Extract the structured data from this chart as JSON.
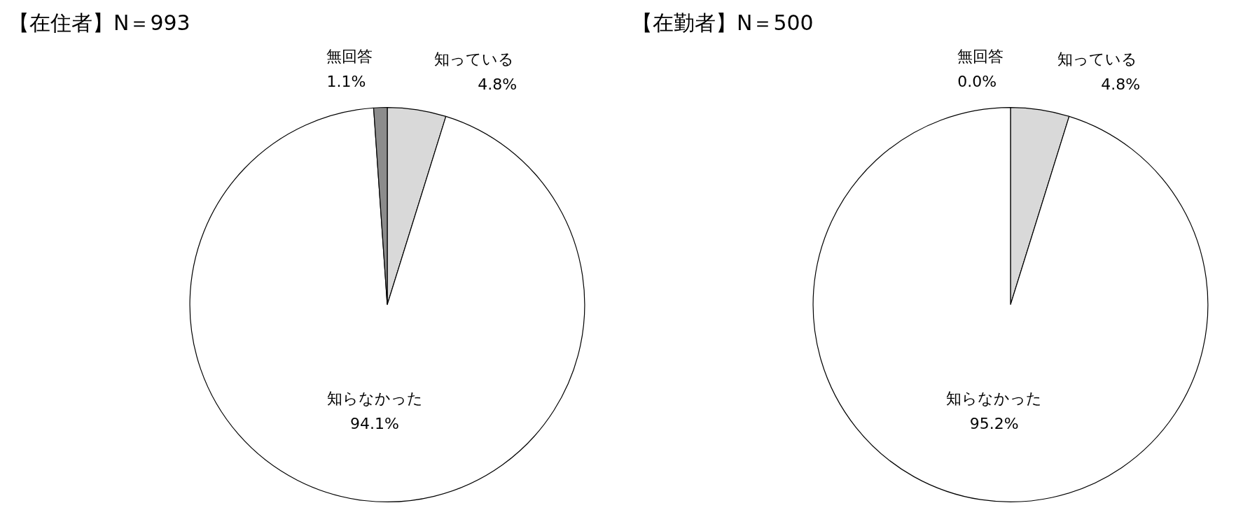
{
  "chart_data": [
    {
      "type": "pie",
      "title": "【在住者】N＝993",
      "categories": [
        "知っている",
        "知らなかった",
        "無回答"
      ],
      "values": [
        4.8,
        94.1,
        1.1
      ],
      "value_labels": [
        "4.8%",
        "94.1%",
        "1.1%"
      ],
      "colors": [
        "#d9d9d9",
        "#ffffff",
        "#8c8c8c"
      ],
      "legend": false
    },
    {
      "type": "pie",
      "title": "【在勤者】N＝500",
      "categories": [
        "知っている",
        "知らなかった",
        "無回答"
      ],
      "values": [
        4.8,
        95.2,
        0.0
      ],
      "value_labels": [
        "4.8%",
        "95.2%",
        "0.0%"
      ],
      "colors": [
        "#d9d9d9",
        "#ffffff",
        "#8c8c8c"
      ],
      "legend": false
    }
  ]
}
